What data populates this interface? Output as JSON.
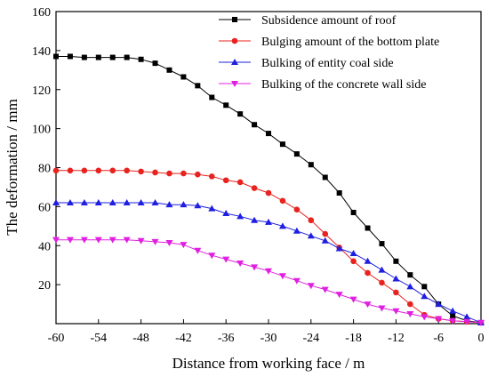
{
  "chart_data": {
    "type": "line",
    "xlabel": "Distance from working face / m",
    "ylabel": "The deformation / mm",
    "xlim": [
      -60,
      0
    ],
    "ylim": [
      0,
      160
    ],
    "xticks": [
      -60,
      -54,
      -48,
      -42,
      -36,
      -30,
      -24,
      -18,
      -12,
      -6,
      0
    ],
    "yticks": [
      20,
      40,
      60,
      80,
      100,
      120,
      140,
      160
    ],
    "grid": false,
    "legend_position": "top-right",
    "series": [
      {
        "name": "Subsidence amount of roof",
        "color": "#000000",
        "marker": "square",
        "x": [
          -60,
          -58,
          -56,
          -54,
          -52,
          -50,
          -48,
          -46,
          -44,
          -42,
          -40,
          -38,
          -36,
          -34,
          -32,
          -30,
          -28,
          -26,
          -24,
          -22,
          -20,
          -18,
          -16,
          -14,
          -12,
          -10,
          -8,
          -6,
          -4,
          -2,
          0
        ],
        "y": [
          137,
          137,
          136.5,
          136.5,
          136.5,
          136.5,
          135.5,
          133.5,
          130,
          126.5,
          122,
          116,
          112,
          107.5,
          102,
          97.5,
          92,
          87,
          81.5,
          75,
          67,
          57,
          49,
          41,
          32,
          25,
          19,
          10,
          4,
          1.5,
          0.5
        ]
      },
      {
        "name": "Bulging amount of the bottom plate",
        "color": "#e8231f",
        "marker": "circle",
        "x": [
          -60,
          -58,
          -56,
          -54,
          -52,
          -50,
          -48,
          -46,
          -44,
          -42,
          -40,
          -38,
          -36,
          -34,
          -32,
          -30,
          -28,
          -26,
          -24,
          -22,
          -20,
          -18,
          -16,
          -14,
          -12,
          -10,
          -8,
          -6,
          -4,
          -2,
          0
        ],
        "y": [
          78.5,
          78.5,
          78.5,
          78.5,
          78.5,
          78.5,
          78,
          77.5,
          77,
          77,
          76.5,
          75.5,
          73.5,
          72.5,
          69.5,
          67,
          63,
          58.5,
          53,
          46,
          39,
          32,
          26,
          21,
          16,
          10,
          4.5,
          2.5,
          1.5,
          1,
          0.5
        ]
      },
      {
        "name": "Bulking of entity coal side",
        "color": "#1f1fe0",
        "marker": "triangle-up",
        "x": [
          -60,
          -58,
          -56,
          -54,
          -52,
          -50,
          -48,
          -46,
          -44,
          -42,
          -40,
          -38,
          -36,
          -34,
          -32,
          -30,
          -28,
          -26,
          -24,
          -22,
          -20,
          -18,
          -16,
          -14,
          -12,
          -10,
          -8,
          -6,
          -4,
          -2,
          0
        ],
        "y": [
          62,
          62,
          62,
          62,
          62,
          62,
          62,
          62,
          61,
          61,
          60.5,
          59,
          56.5,
          55,
          53,
          52,
          50,
          47.5,
          45,
          42.5,
          38.5,
          36,
          32,
          27.5,
          23,
          19,
          14,
          10,
          6.5,
          3.5,
          0.5
        ]
      },
      {
        "name": "Bulking of the concrete wall side",
        "color": "#e020e0",
        "marker": "triangle-down",
        "x": [
          -60,
          -58,
          -56,
          -54,
          -52,
          -50,
          -48,
          -46,
          -44,
          -42,
          -40,
          -38,
          -36,
          -34,
          -32,
          -30,
          -28,
          -26,
          -24,
          -22,
          -20,
          -18,
          -16,
          -14,
          -12,
          -10,
          -8,
          -6,
          -4,
          -2,
          0
        ],
        "y": [
          43,
          43,
          43,
          43,
          43,
          43,
          42.5,
          42,
          41.5,
          40.5,
          37.5,
          35,
          33,
          31,
          29,
          27,
          24.5,
          22,
          19.5,
          17.5,
          15,
          12.5,
          10,
          8,
          6.5,
          5,
          3.5,
          2.5,
          1.5,
          1,
          0.5
        ]
      }
    ]
  }
}
